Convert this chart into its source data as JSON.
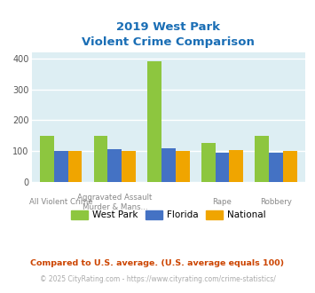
{
  "title_line1": "2019 West Park",
  "title_line2": "Violent Crime Comparison",
  "west_park": [
    150,
    150,
    393,
    125,
    148
  ],
  "florida": [
    100,
    105,
    108,
    93,
    93
  ],
  "national": [
    100,
    100,
    100,
    103,
    100
  ],
  "bar_colors": {
    "west_park": "#8dc63f",
    "florida": "#4472c4",
    "national": "#f0a500"
  },
  "ylim": [
    0,
    420
  ],
  "yticks": [
    0,
    100,
    200,
    300,
    400
  ],
  "plot_bg": "#ddeef3",
  "grid_color": "#ffffff",
  "title_color": "#1a6eb5",
  "footnote1": "Compared to U.S. average. (U.S. average equals 100)",
  "footnote2": "© 2025 CityRating.com - https://www.cityrating.com/crime-statistics/",
  "footnote1_color": "#cc4400",
  "footnote2_color": "#aaaaaa",
  "footnote2_url_color": "#4472c4",
  "legend_labels": [
    "West Park",
    "Florida",
    "National"
  ],
  "top_labels": [
    "",
    "Aggravated Assault",
    "",
    "",
    ""
  ],
  "bot_labels": [
    "All Violent Crime",
    "Murder & Mans...",
    "",
    "Rape",
    "Robbery"
  ]
}
